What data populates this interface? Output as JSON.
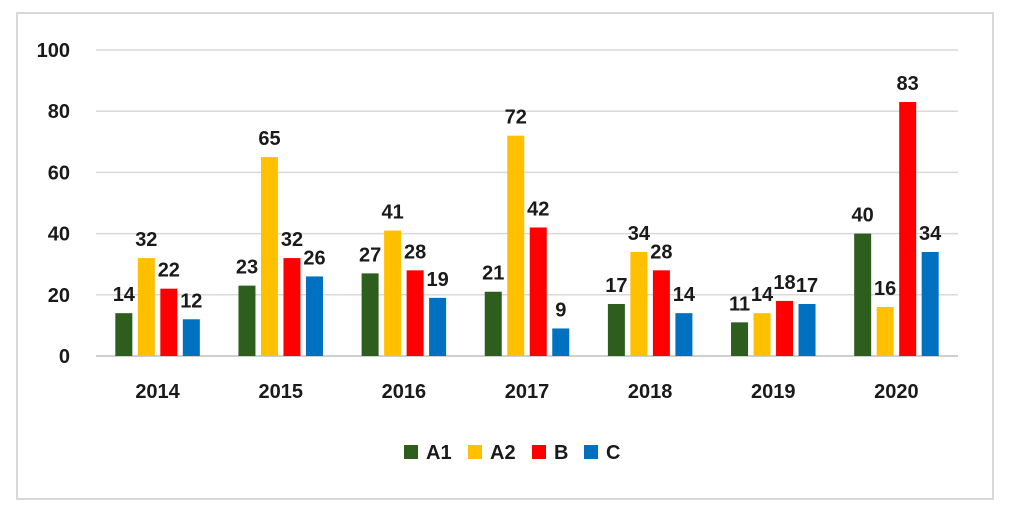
{
  "chart_data": {
    "type": "bar",
    "categories": [
      "2014",
      "2015",
      "2016",
      "2017",
      "2018",
      "2019",
      "2020"
    ],
    "series": [
      {
        "name": "A1",
        "color": "#2e5e1e",
        "values": [
          14,
          23,
          27,
          21,
          17,
          11,
          40
        ]
      },
      {
        "name": "A2",
        "color": "#ffc000",
        "values": [
          32,
          65,
          41,
          72,
          34,
          14,
          16
        ]
      },
      {
        "name": "B",
        "color": "#ff0000",
        "values": [
          22,
          32,
          28,
          42,
          28,
          18,
          83
        ]
      },
      {
        "name": "C",
        "color": "#0070c0",
        "values": [
          12,
          26,
          19,
          9,
          14,
          17,
          34
        ]
      }
    ],
    "ylim": [
      0,
      100
    ],
    "yticks": [
      0,
      20,
      40,
      60,
      80,
      100
    ],
    "grid": true,
    "legend_position": "bottom",
    "data_labels": true,
    "title": "",
    "xlabel": "",
    "ylabel": ""
  }
}
